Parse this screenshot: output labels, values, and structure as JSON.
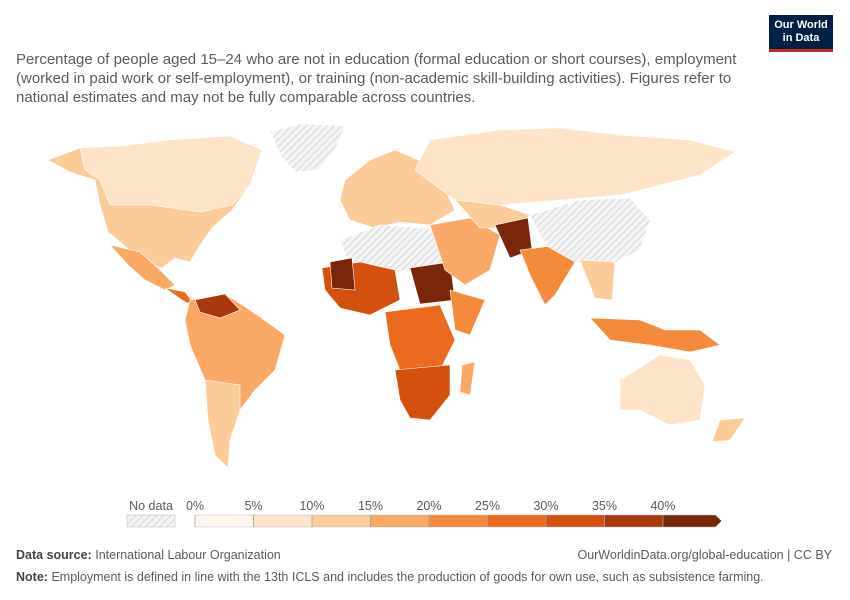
{
  "logo": {
    "line1": "Our World",
    "line2": "in Data"
  },
  "subtitle": "Percentage of people aged 15–24 who are not in education (formal education or short courses), employment (worked in paid work or self-employment), or training (non-academic skill-building activities). Figures refer to national estimates and may not be fully comparable across countries.",
  "chart_data": {
    "type": "choropleth",
    "legend": {
      "no_data": "No data",
      "ticks": [
        {
          "value": 0,
          "label": "0%"
        },
        {
          "value": 5,
          "label": "5%"
        },
        {
          "value": 10,
          "label": "10%"
        },
        {
          "value": 15,
          "label": "15%"
        },
        {
          "value": 20,
          "label": "20%"
        },
        {
          "value": 25,
          "label": "25%"
        },
        {
          "value": 30,
          "label": "30%"
        },
        {
          "value": 35,
          "label": "35%"
        },
        {
          "value": 40,
          "label": "40%"
        }
      ],
      "colors": [
        "#fef5ec",
        "#fde3c8",
        "#fbcb9a",
        "#f9a866",
        "#f58a3c",
        "#eb6a1f",
        "#d4500f",
        "#a9380c",
        "#7a260a"
      ]
    }
  },
  "footer": {
    "source_label": "Data source:",
    "source": "International Labour Organization",
    "url": "OurWorldinData.org/global-education | CC BY",
    "note_label": "Note:",
    "note": "Employment is defined in line with the 13th ICLS and includes the production of goods for own use, such as subsistence farming."
  }
}
